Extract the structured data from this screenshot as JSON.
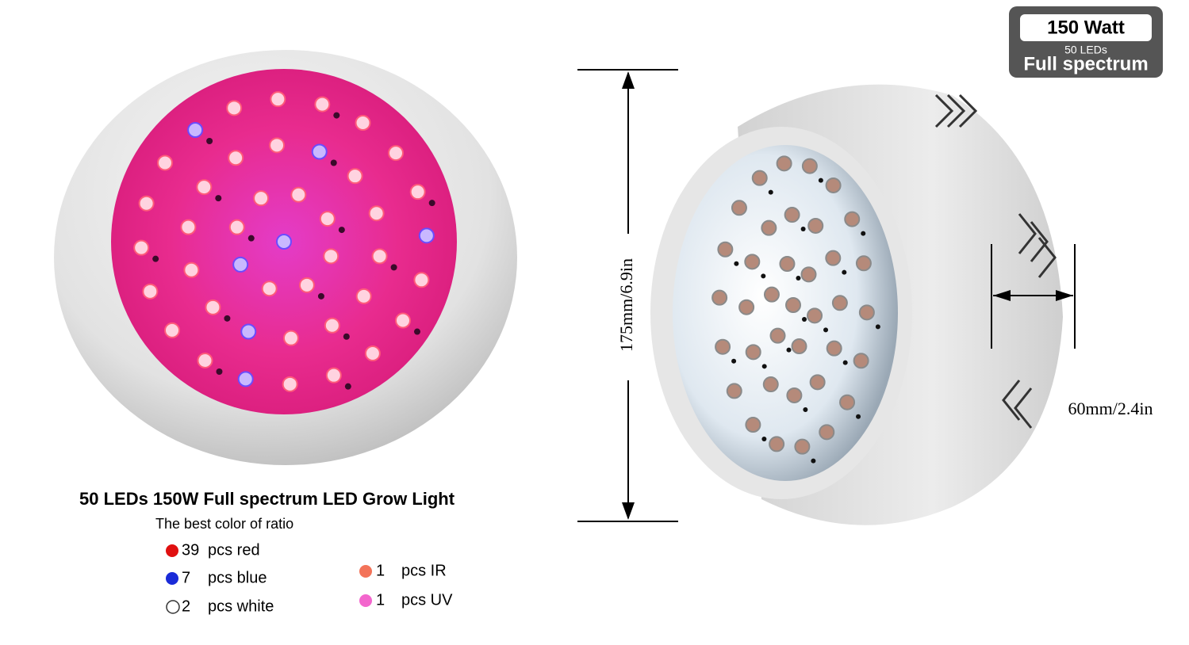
{
  "badge": {
    "title": "150 Watt",
    "subtitle": "50 LEDs",
    "caption": "Full spectrum"
  },
  "dimensions": {
    "height": "175mm/6.9in",
    "depth": "60mm/2.4in"
  },
  "product": {
    "title": "50 LEDs 150W  Full spectrum LED Grow Light",
    "subtitle": "The best color of ratio",
    "items": [
      {
        "count": "39",
        "label": "pcs red"
      },
      {
        "count": "7",
        "label": "pcs blue"
      },
      {
        "count": "2",
        "label": "pcs white"
      },
      {
        "count": "1",
        "label": "pcs IR"
      },
      {
        "count": "1",
        "label": "pcs UV"
      }
    ]
  }
}
